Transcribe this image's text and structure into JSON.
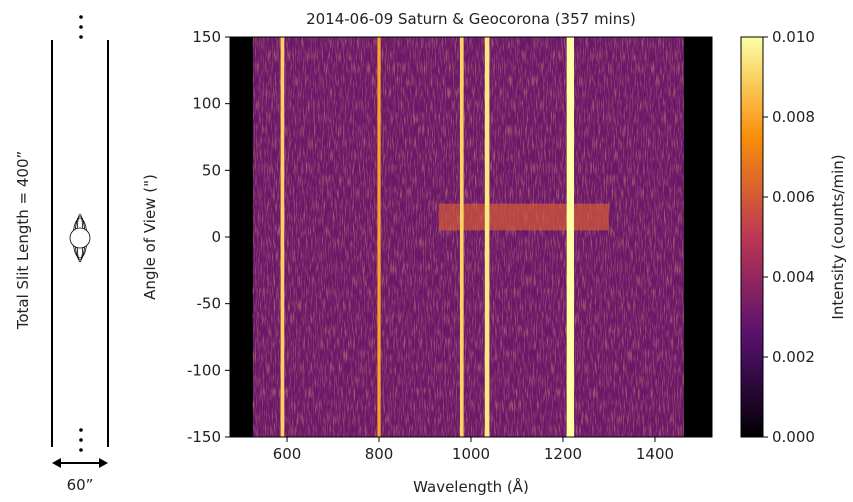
{
  "slit_diagram": {
    "length_label": "Total Slit Length = 400”",
    "width_label": "60”"
  },
  "chart_data": {
    "type": "spectrogram",
    "title": "2014-06-09 Saturn & Geocorona (357 mins)",
    "x_label": "Wavelength (Å)",
    "y_label": "Angle of View (\")",
    "colorbar_label": "Intensity (counts/min)",
    "xlim": [
      476,
      1524
    ],
    "ylim": [
      -150,
      150
    ],
    "xticks": [
      600,
      800,
      1000,
      1200,
      1400
    ],
    "yticks": [
      -150,
      -100,
      -50,
      0,
      50,
      100,
      150
    ],
    "clim": [
      0,
      0.01
    ],
    "cticks": [
      {
        "value": 0,
        "label": "0.000"
      },
      {
        "value": 0.002,
        "label": "0.002"
      },
      {
        "value": 0.004,
        "label": "0.004"
      },
      {
        "value": 0.006,
        "label": "0.006"
      },
      {
        "value": 0.008,
        "label": "0.008"
      },
      {
        "value": 0.01,
        "label": "0.010"
      }
    ],
    "coverage": [
      526,
      1463
    ],
    "background_value": 0.003,
    "emission_lines": [
      {
        "x": 590,
        "width": 8,
        "value": 0.009
      },
      {
        "x": 800,
        "width": 7,
        "value": 0.008
      },
      {
        "x": 980,
        "width": 8,
        "value": 0.009
      },
      {
        "x": 1035,
        "width": 10,
        "value": 0.0095
      },
      {
        "x": 1216,
        "width": 16,
        "value": 0.01
      }
    ],
    "bands": [
      {
        "x": [
          930,
          1300
        ],
        "y": [
          5,
          25
        ],
        "value": 0.006
      }
    ]
  }
}
